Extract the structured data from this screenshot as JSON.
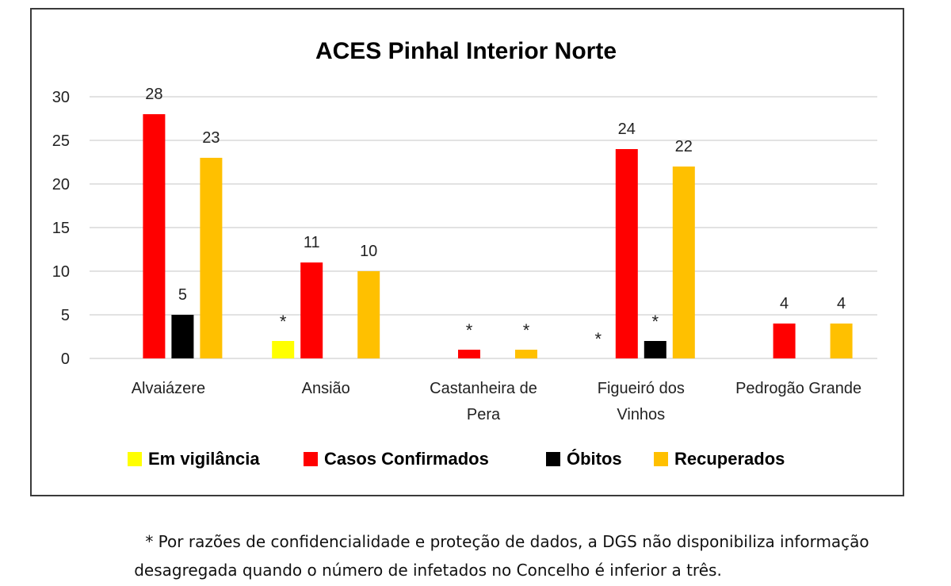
{
  "chart_data": {
    "type": "bar",
    "title": "ACES Pinhal Interior Norte",
    "xlabel": "",
    "ylabel": "",
    "ylim": [
      0,
      30
    ],
    "yticks": [
      0,
      5,
      10,
      15,
      20,
      25,
      30
    ],
    "grid": true,
    "legend_position": "bottom",
    "categories": [
      [
        "Alvaiázere"
      ],
      [
        "Ansião"
      ],
      [
        "Castanheira de",
        "Pera"
      ],
      [
        "Figueiró dos",
        "Vinhos"
      ],
      [
        "Pedrogão Grande"
      ]
    ],
    "series": [
      {
        "name": "Em vigilância",
        "color": "#ffff00",
        "values": [
          null,
          2,
          null,
          null,
          null
        ],
        "labels": [
          "",
          "*",
          "",
          "*",
          ""
        ]
      },
      {
        "name": "Casos Confirmados",
        "color": "#ff0000",
        "values": [
          28,
          11,
          1,
          24,
          4
        ],
        "labels": [
          "28",
          "11",
          "*",
          "24",
          "4"
        ]
      },
      {
        "name": "Óbitos",
        "color": "#000000",
        "values": [
          5,
          null,
          null,
          2,
          null
        ],
        "labels": [
          "5",
          "",
          "",
          "*",
          ""
        ]
      },
      {
        "name": "Recuperados",
        "color": "#ffc000",
        "values": [
          23,
          10,
          1,
          22,
          4
        ],
        "labels": [
          "23",
          "10",
          "*",
          "22",
          "4"
        ]
      }
    ]
  },
  "footnote": {
    "line1": "* Por razões de confidencialidade e proteção de dados, a DGS não disponibiliza informação",
    "line2": "desagregada quando o número de infetados no Concelho é inferior a três."
  }
}
